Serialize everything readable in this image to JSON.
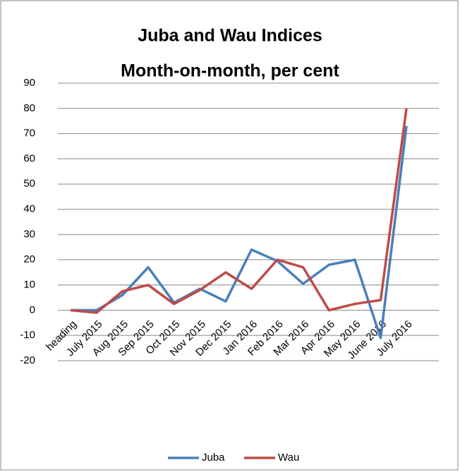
{
  "chart_data": {
    "type": "line",
    "title": "Juba and Wau Indices",
    "subtitle": "Month-on-month, per cent",
    "categories": [
      "heading",
      "July 2015",
      "Aug 2015",
      "Sep 2015",
      "Oct 2015",
      "Nov 2015",
      "Dec 2015",
      "Jan 2016",
      "Feb 2016",
      "Mar 2016",
      "Apr 2016",
      "May 2016",
      "June 2016",
      "July 2016"
    ],
    "series": [
      {
        "name": "Juba",
        "color": "#4a7ebb",
        "values": [
          0,
          0,
          6,
          17,
          3,
          8.5,
          3.5,
          24,
          19.5,
          10.5,
          18,
          20,
          -11,
          73
        ]
      },
      {
        "name": "Wau",
        "color": "#be4b48",
        "values": [
          0,
          -1,
          7.5,
          10,
          2.5,
          8,
          15,
          8.5,
          20,
          17,
          0,
          2.5,
          4,
          80
        ]
      }
    ],
    "ylim": [
      -20,
      90
    ],
    "yticks": [
      -20,
      -10,
      0,
      10,
      20,
      30,
      40,
      50,
      60,
      70,
      80,
      90
    ],
    "grid": true,
    "legend": "bottom"
  }
}
